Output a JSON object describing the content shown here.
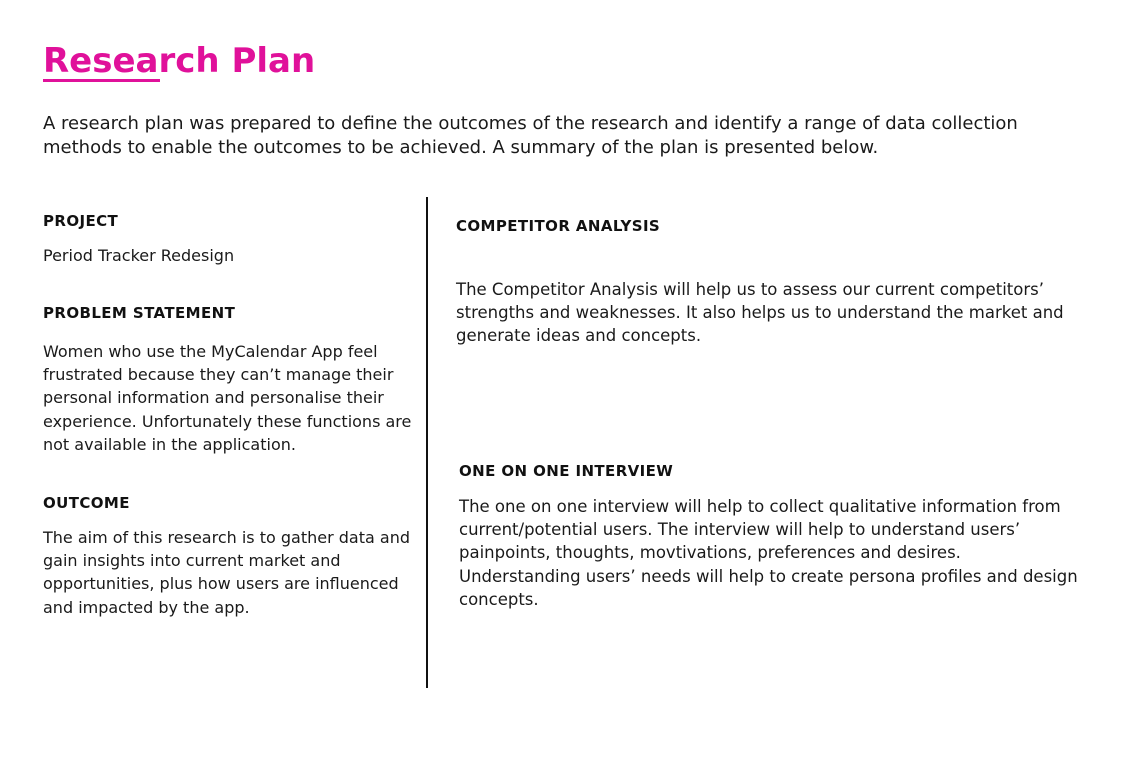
{
  "page": {
    "title": "Research Plan",
    "intro": "A research plan was prepared to define the outcomes of the research and identify a range of data collection methods to enable the outcomes to be achieved. A summary of the plan is presented below."
  },
  "left_column": {
    "project": {
      "heading": "PROJECT",
      "body": "Period Tracker Redesign"
    },
    "problem_statement": {
      "heading": "PROBLEM STATEMENT",
      "body": "Women who use the MyCalendar App feel frustrated because they can’t manage their personal information and personalise their experience. Unfortunately these functions are not available in the application."
    },
    "outcome": {
      "heading": "OUTCOME",
      "body": "The aim of this research is to gather data and gain insights into current market and opportunities, plus how users are influenced and impacted by the app."
    }
  },
  "right_column": {
    "competitor_analysis": {
      "heading": "COMPETITOR ANALYSIS",
      "body": "The Competitor Analysis will help us to assess our current competitors’ strengths and weaknesses. It also helps us to understand the market and generate ideas and concepts."
    },
    "one_on_one_interview": {
      "heading": "ONE ON ONE INTERVIEW",
      "body": "The one on one interview will help to collect qualitative information from current/potential users. The interview will help to understand users’ painpoints, thoughts, movtivations, preferences and desires. Understanding users’ needs will help to create persona profiles and design concepts."
    }
  },
  "colors": {
    "accent": "#e0119a",
    "text": "#1a1a1a",
    "divider": "#111111",
    "background": "#ffffff"
  }
}
